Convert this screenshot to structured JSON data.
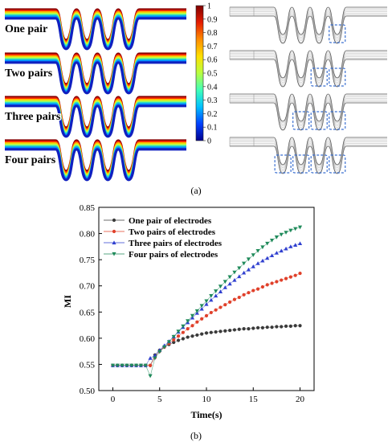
{
  "panel_a": {
    "caption": "(a)",
    "row_labels": [
      "One pair",
      "Two pairs",
      "Three pairs",
      "Four pairs"
    ],
    "electrode_counts": [
      1,
      2,
      3,
      4
    ],
    "colorbar": {
      "ticks": [
        "1",
        "0.9",
        "0.8",
        "0.7",
        "0.6",
        "0.5",
        "0.4",
        "0.3",
        "0.2",
        "0.1",
        "0"
      ],
      "colors": [
        "#7f0000",
        "#e51c00",
        "#ff8c00",
        "#ffe000",
        "#b8ff40",
        "#40ffb8",
        "#00c0ff",
        "#0040ff",
        "#00008f"
      ]
    }
  },
  "panel_b": {
    "caption": "(b)"
  },
  "chart_data": {
    "type": "line",
    "title": "",
    "xlabel": "Time(s)",
    "ylabel": "MI",
    "xlim": [
      -1.5,
      21.5
    ],
    "ylim": [
      0.5,
      0.85
    ],
    "xticks": [
      0,
      5,
      10,
      15,
      20
    ],
    "yticks": [
      0.5,
      0.55,
      0.6,
      0.65,
      0.7,
      0.75,
      0.8,
      0.85
    ],
    "xtick_labels": [
      "0",
      "5",
      "10",
      "15",
      "20"
    ],
    "ytick_labels": [
      "0.50",
      "0.55",
      "0.60",
      "0.65",
      "0.70",
      "0.75",
      "0.80",
      "0.85"
    ],
    "grid": false,
    "legend_position": "top-left",
    "x": [
      0,
      0.5,
      1,
      1.5,
      2,
      2.5,
      3,
      3.5,
      4,
      4.5,
      5,
      5.5,
      6,
      6.5,
      7,
      7.5,
      8,
      8.5,
      9,
      9.5,
      10,
      10.5,
      11,
      11.5,
      12,
      12.5,
      13,
      13.5,
      14,
      14.5,
      15,
      15.5,
      16,
      16.5,
      17,
      17.5,
      18,
      18.5,
      19,
      19.5,
      20
    ],
    "series": [
      {
        "name": "One pair of electrodes",
        "color": "#3a3a3a",
        "marker": "circle",
        "values": [
          0.548,
          0.548,
          0.548,
          0.548,
          0.548,
          0.548,
          0.548,
          0.548,
          0.548,
          0.568,
          0.577,
          0.583,
          0.588,
          0.592,
          0.596,
          0.599,
          0.602,
          0.604,
          0.606,
          0.608,
          0.61,
          0.611,
          0.612,
          0.613,
          0.614,
          0.615,
          0.616,
          0.617,
          0.618,
          0.618,
          0.619,
          0.62,
          0.62,
          0.621,
          0.621,
          0.622,
          0.622,
          0.623,
          0.623,
          0.624,
          0.624
        ]
      },
      {
        "name": "Two pairs of electrodes",
        "color": "#e0402a",
        "marker": "circle",
        "values": [
          0.548,
          0.548,
          0.548,
          0.548,
          0.548,
          0.548,
          0.548,
          0.548,
          0.548,
          0.563,
          0.575,
          0.583,
          0.59,
          0.597,
          0.604,
          0.611,
          0.618,
          0.624,
          0.631,
          0.637,
          0.643,
          0.649,
          0.654,
          0.659,
          0.664,
          0.669,
          0.674,
          0.678,
          0.683,
          0.687,
          0.691,
          0.694,
          0.698,
          0.702,
          0.705,
          0.708,
          0.711,
          0.714,
          0.717,
          0.72,
          0.724
        ]
      },
      {
        "name": "Three pairs of electrodes",
        "color": "#2f3fcf",
        "marker": "triangle-up",
        "values": [
          0.548,
          0.548,
          0.548,
          0.548,
          0.548,
          0.548,
          0.548,
          0.548,
          0.562,
          0.567,
          0.577,
          0.586,
          0.594,
          0.603,
          0.612,
          0.621,
          0.63,
          0.639,
          0.648,
          0.656,
          0.665,
          0.673,
          0.681,
          0.689,
          0.697,
          0.704,
          0.711,
          0.718,
          0.725,
          0.731,
          0.737,
          0.743,
          0.748,
          0.753,
          0.758,
          0.763,
          0.767,
          0.771,
          0.775,
          0.778,
          0.781
        ]
      },
      {
        "name": "Four pairs of electrodes",
        "color": "#1f8a5a",
        "marker": "triangle-down",
        "values": [
          0.548,
          0.548,
          0.548,
          0.548,
          0.548,
          0.548,
          0.548,
          0.548,
          0.528,
          0.562,
          0.574,
          0.583,
          0.593,
          0.603,
          0.613,
          0.623,
          0.633,
          0.643,
          0.652,
          0.662,
          0.671,
          0.681,
          0.69,
          0.699,
          0.708,
          0.717,
          0.726,
          0.734,
          0.743,
          0.751,
          0.759,
          0.767,
          0.774,
          0.781,
          0.787,
          0.793,
          0.798,
          0.802,
          0.806,
          0.809,
          0.812
        ]
      }
    ]
  }
}
